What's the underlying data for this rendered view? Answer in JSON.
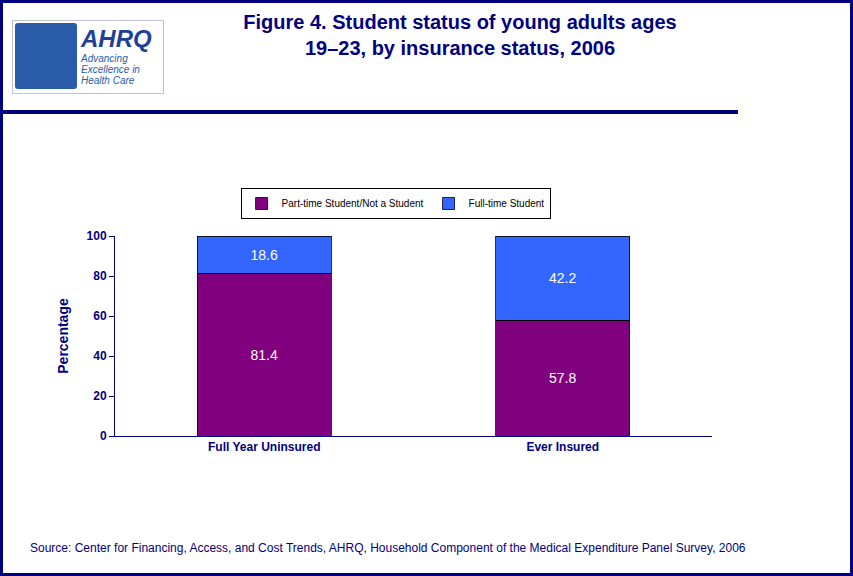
{
  "chart_data": {
    "type": "bar",
    "title": "Figure 4. Student status of young adults ages 19–23, by insurance status, 2006",
    "y_label": "Percentage",
    "categories": [
      "Full Year Uninsured",
      "Ever Insured"
    ],
    "series": [
      {
        "name": "Part-time Student/Not a Student",
        "color": "#800080",
        "values": [
          81.4,
          57.8
        ]
      },
      {
        "name": "Full-time Student",
        "color": "#3366ff",
        "values": [
          18.6,
          42.2
        ]
      }
    ],
    "ylim": [
      0,
      100
    ],
    "yticks": [
      0,
      20,
      40,
      60,
      80,
      100
    ],
    "stacked": true,
    "data_labels": true,
    "grid": false,
    "legend": "top",
    "annotations": [
      "Source: Center for Financing, Access, and Cost Trends, AHRQ, Household Component of the Medical Expenditure Panel Survey, 2006",
      "AHRQ",
      "Advancing Excellence in Health Care"
    ]
  }
}
